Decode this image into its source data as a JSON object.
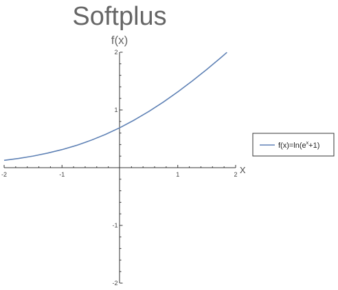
{
  "chart_data": {
    "type": "line",
    "title": "Softplus",
    "xlabel": "x",
    "ylabel": "f(x)",
    "xlim": [
      -2,
      2
    ],
    "ylim": [
      -2,
      2
    ],
    "x_ticks": [
      {
        "value": -2,
        "label": "-2"
      },
      {
        "value": -1,
        "label": "-1"
      },
      {
        "value": 1,
        "label": "1"
      },
      {
        "value": 2,
        "label": "2"
      }
    ],
    "y_ticks": [
      {
        "value": 2,
        "label": "2"
      },
      {
        "value": 1,
        "label": "1"
      },
      {
        "value": -1,
        "label": "-1"
      },
      {
        "value": -2,
        "label": "-2"
      }
    ],
    "grid": false,
    "legend_position": "right",
    "series": [
      {
        "name": "f(x)=ln(e^x+1)",
        "legend": {
          "prefix": "f(x)=ln(e",
          "sup": "x",
          "suffix": "+1)"
        },
        "color": "#5e81b5",
        "x": [
          -2,
          -1.75,
          -1.5,
          -1.25,
          -1,
          -0.75,
          -0.5,
          -0.25,
          0,
          0.25,
          0.5,
          0.75,
          1,
          1.25,
          1.5,
          1.75,
          1.85
        ],
        "y": [
          0.127,
          0.16,
          0.201,
          0.252,
          0.313,
          0.386,
          0.474,
          0.576,
          0.693,
          0.826,
          0.974,
          1.136,
          1.313,
          1.502,
          1.701,
          1.911,
          1.998
        ]
      }
    ]
  }
}
